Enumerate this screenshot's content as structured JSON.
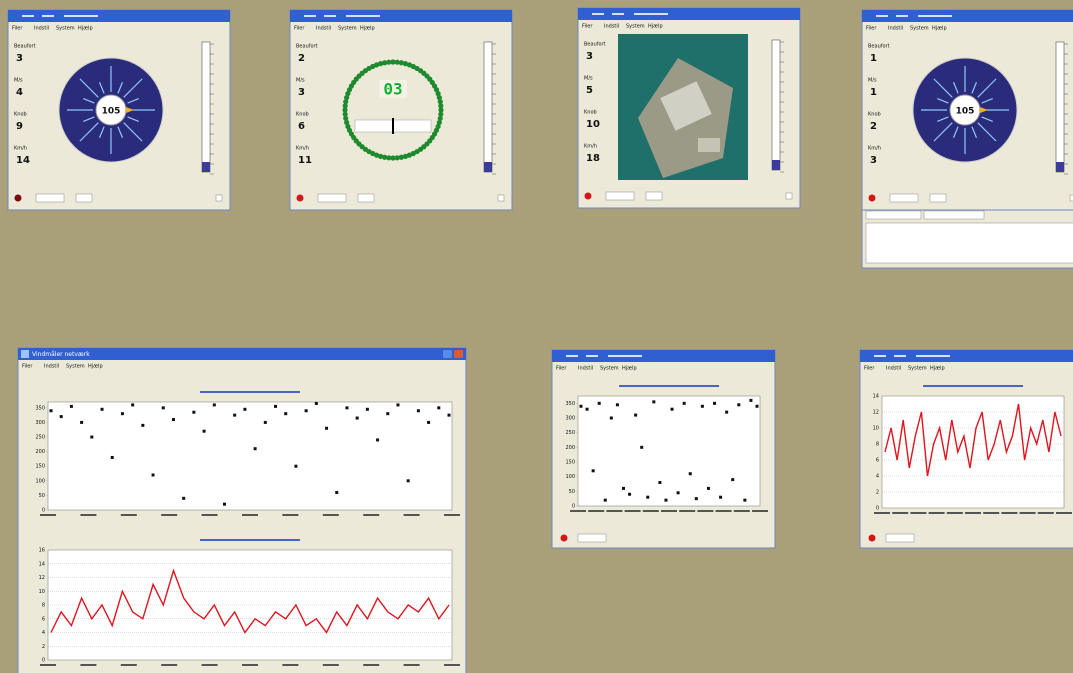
{
  "menu": [
    "Filer",
    "Indstil",
    "System",
    "Hjælp"
  ],
  "gauge_labels": [
    "Beaufort",
    "M/s",
    "Knob",
    "Km/h"
  ],
  "gauges": [
    {
      "values": [
        3,
        4,
        9,
        14
      ],
      "center": "105"
    },
    {
      "values": [
        2,
        3,
        6,
        11
      ],
      "center": "03"
    },
    {
      "values": [
        3,
        5,
        10,
        18
      ]
    },
    {
      "values": [
        1,
        1,
        2,
        3
      ],
      "center": "105"
    }
  ],
  "network_title": "Vindmåler netværk",
  "charts": [
    {
      "type": "scatter",
      "ylim": [
        0,
        370
      ],
      "yticks": [
        0,
        50,
        100,
        150,
        200,
        250,
        300,
        350
      ],
      "values": [
        340,
        320,
        355,
        300,
        250,
        345,
        180,
        330,
        360,
        290,
        120,
        350,
        310,
        40,
        335,
        270,
        360,
        20,
        325,
        345,
        210,
        300,
        355,
        330,
        150,
        340,
        365,
        280,
        60,
        350,
        315,
        345,
        240,
        330,
        360,
        100,
        340,
        300,
        350,
        325
      ]
    },
    {
      "type": "line",
      "color": "#e0141e",
      "ylim": [
        0,
        16
      ],
      "yticks": [
        0,
        2,
        4,
        6,
        8,
        10,
        12,
        14,
        16
      ],
      "grid": true,
      "values": [
        4,
        7,
        5,
        9,
        6,
        8,
        5,
        10,
        7,
        6,
        11,
        8,
        13,
        9,
        7,
        6,
        8,
        5,
        7,
        4,
        6,
        5,
        7,
        6,
        8,
        5,
        6,
        4,
        7,
        5,
        8,
        6,
        9,
        7,
        6,
        8,
        7,
        9,
        6,
        8
      ]
    },
    {
      "type": "scatter",
      "ylim": [
        0,
        375
      ],
      "yticks": [
        0,
        50,
        100,
        150,
        200,
        250,
        300,
        350
      ],
      "values": [
        340,
        330,
        120,
        350,
        20,
        300,
        345,
        60,
        40,
        310,
        200,
        30,
        355,
        80,
        20,
        330,
        45,
        350,
        110,
        25,
        340,
        60,
        350,
        30,
        320,
        90,
        345,
        20,
        360,
        340
      ]
    },
    {
      "type": "line",
      "color": "#e0141e",
      "ylim": [
        0,
        14
      ],
      "yticks": [
        0,
        2,
        4,
        6,
        8,
        10,
        12,
        14
      ],
      "grid": true,
      "values": [
        7,
        10,
        6,
        11,
        5,
        9,
        12,
        4,
        8,
        10,
        6,
        11,
        7,
        9,
        5,
        10,
        12,
        6,
        8,
        11,
        7,
        9,
        13,
        6,
        10,
        8,
        11,
        7,
        12,
        9
      ]
    }
  ]
}
